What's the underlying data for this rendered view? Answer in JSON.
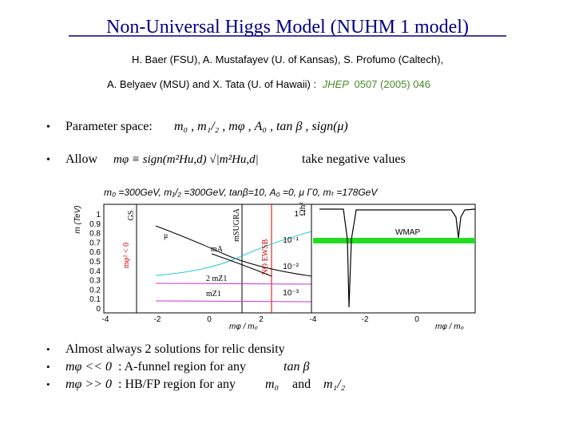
{
  "header": {
    "title": "Non-Universal Higgs Model (NUHM 1 model)",
    "authors_line1": "H. Baer (FSU), A. Mustafayev (U. of Kansas), S. Profumo (Caltech),",
    "authors_line2": "A. Belyaev (MSU) and X. Tata (U. of Hawaii) :",
    "journal": "JHEP",
    "reference": "0507 (2005) 046"
  },
  "bullets": [
    {
      "text": "Parameter space:",
      "formula": "m₀ , m₁/₂ , mφ , A₀ , tan β , sign(μ)"
    },
    {
      "text": "Allow",
      "formula": "mφ ≡ sign(m²Hu,d) √|m²Hu,d|",
      "tail": "take negative values"
    }
  ],
  "figure": {
    "caption": "m₀ =300GeV, m₁/₂ =300GeV, tanβ=10, A₀ =0, μ Γ0, mₜ =178GeV",
    "left": {
      "ylabel": "m (TeV)",
      "xlabel": "mφ / m₀",
      "yticks": [
        "1",
        "0.9",
        "0.8",
        "0.7",
        "0.6",
        "0.5",
        "0.4",
        "0.3",
        "0.2",
        "0.1",
        "0"
      ],
      "xticks": [
        "-4",
        "-2",
        "0",
        "2"
      ],
      "annotations": [
        "GS",
        "mSUGRA",
        "NO EWSB",
        "μ",
        "mA",
        "2 mZ1",
        "mZ1",
        "mφ² < 0"
      ]
    },
    "right": {
      "ylabel": "Ωh²",
      "xlabel": "mφ / m₀",
      "yticks": [
        "1",
        "10⁻¹",
        "10⁻²",
        "10⁻³"
      ],
      "xticks": [
        "-4",
        "-2",
        "0"
      ],
      "band_label": "WMAP"
    }
  },
  "conclusions": [
    {
      "text": "Almost always 2 solutions for relic density"
    },
    {
      "formula": "mφ << 0",
      "text": ": A-funnel region for any",
      "param": "tan β"
    },
    {
      "formula": "mφ >> 0",
      "text": ": HB/FP region for any",
      "param": "m₀",
      "joiner": "and",
      "param2": "m₁/₂"
    }
  ]
}
